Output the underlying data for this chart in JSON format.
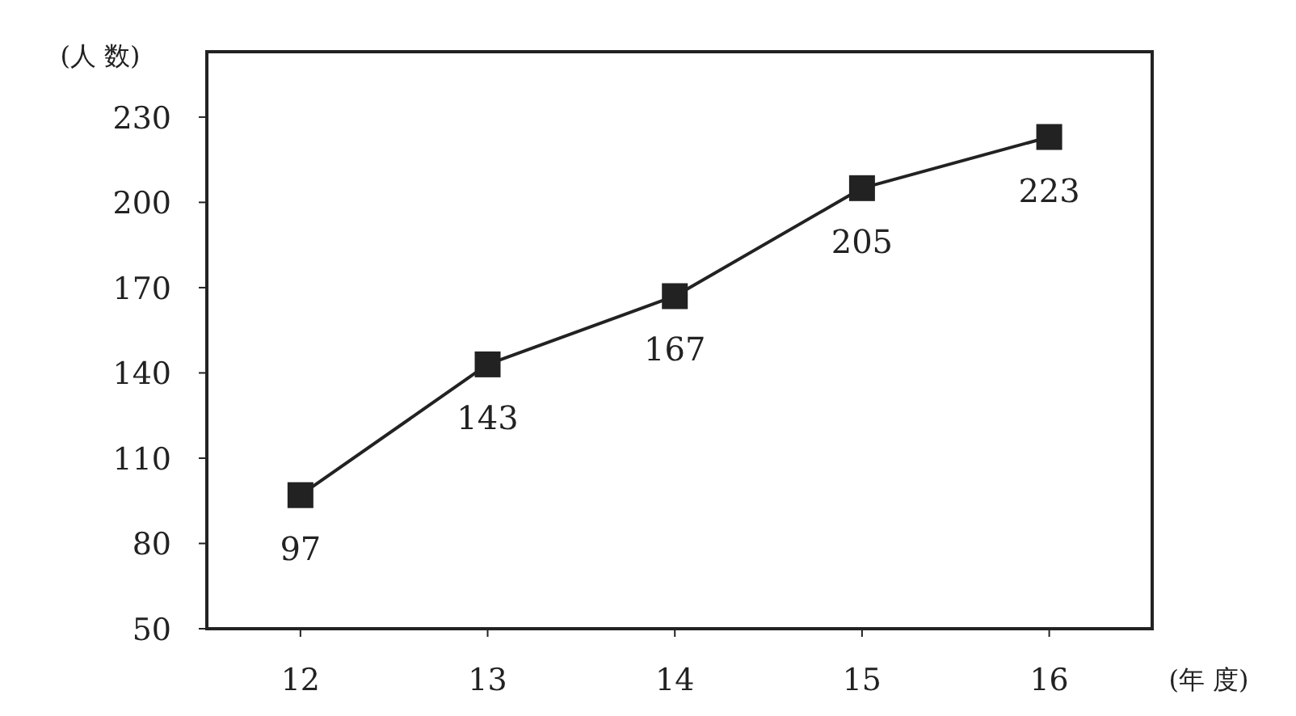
{
  "chart_data": {
    "type": "line",
    "ylabel": "(人 数)",
    "xlabel": "(年 度)",
    "x": [
      12,
      13,
      14,
      15,
      16
    ],
    "series": [
      {
        "color": "#222222",
        "values": [
          97,
          143,
          167,
          205,
          223
        ]
      }
    ],
    "xlim": [
      11.5,
      16.55
    ],
    "ylim": [
      50,
      253
    ],
    "xticks": [
      12,
      13,
      14,
      15,
      16
    ],
    "yticks": [
      50,
      80,
      110,
      140,
      170,
      200,
      230
    ],
    "marker": "square",
    "line_style": "solid",
    "data_labels": true,
    "grid": false
  }
}
